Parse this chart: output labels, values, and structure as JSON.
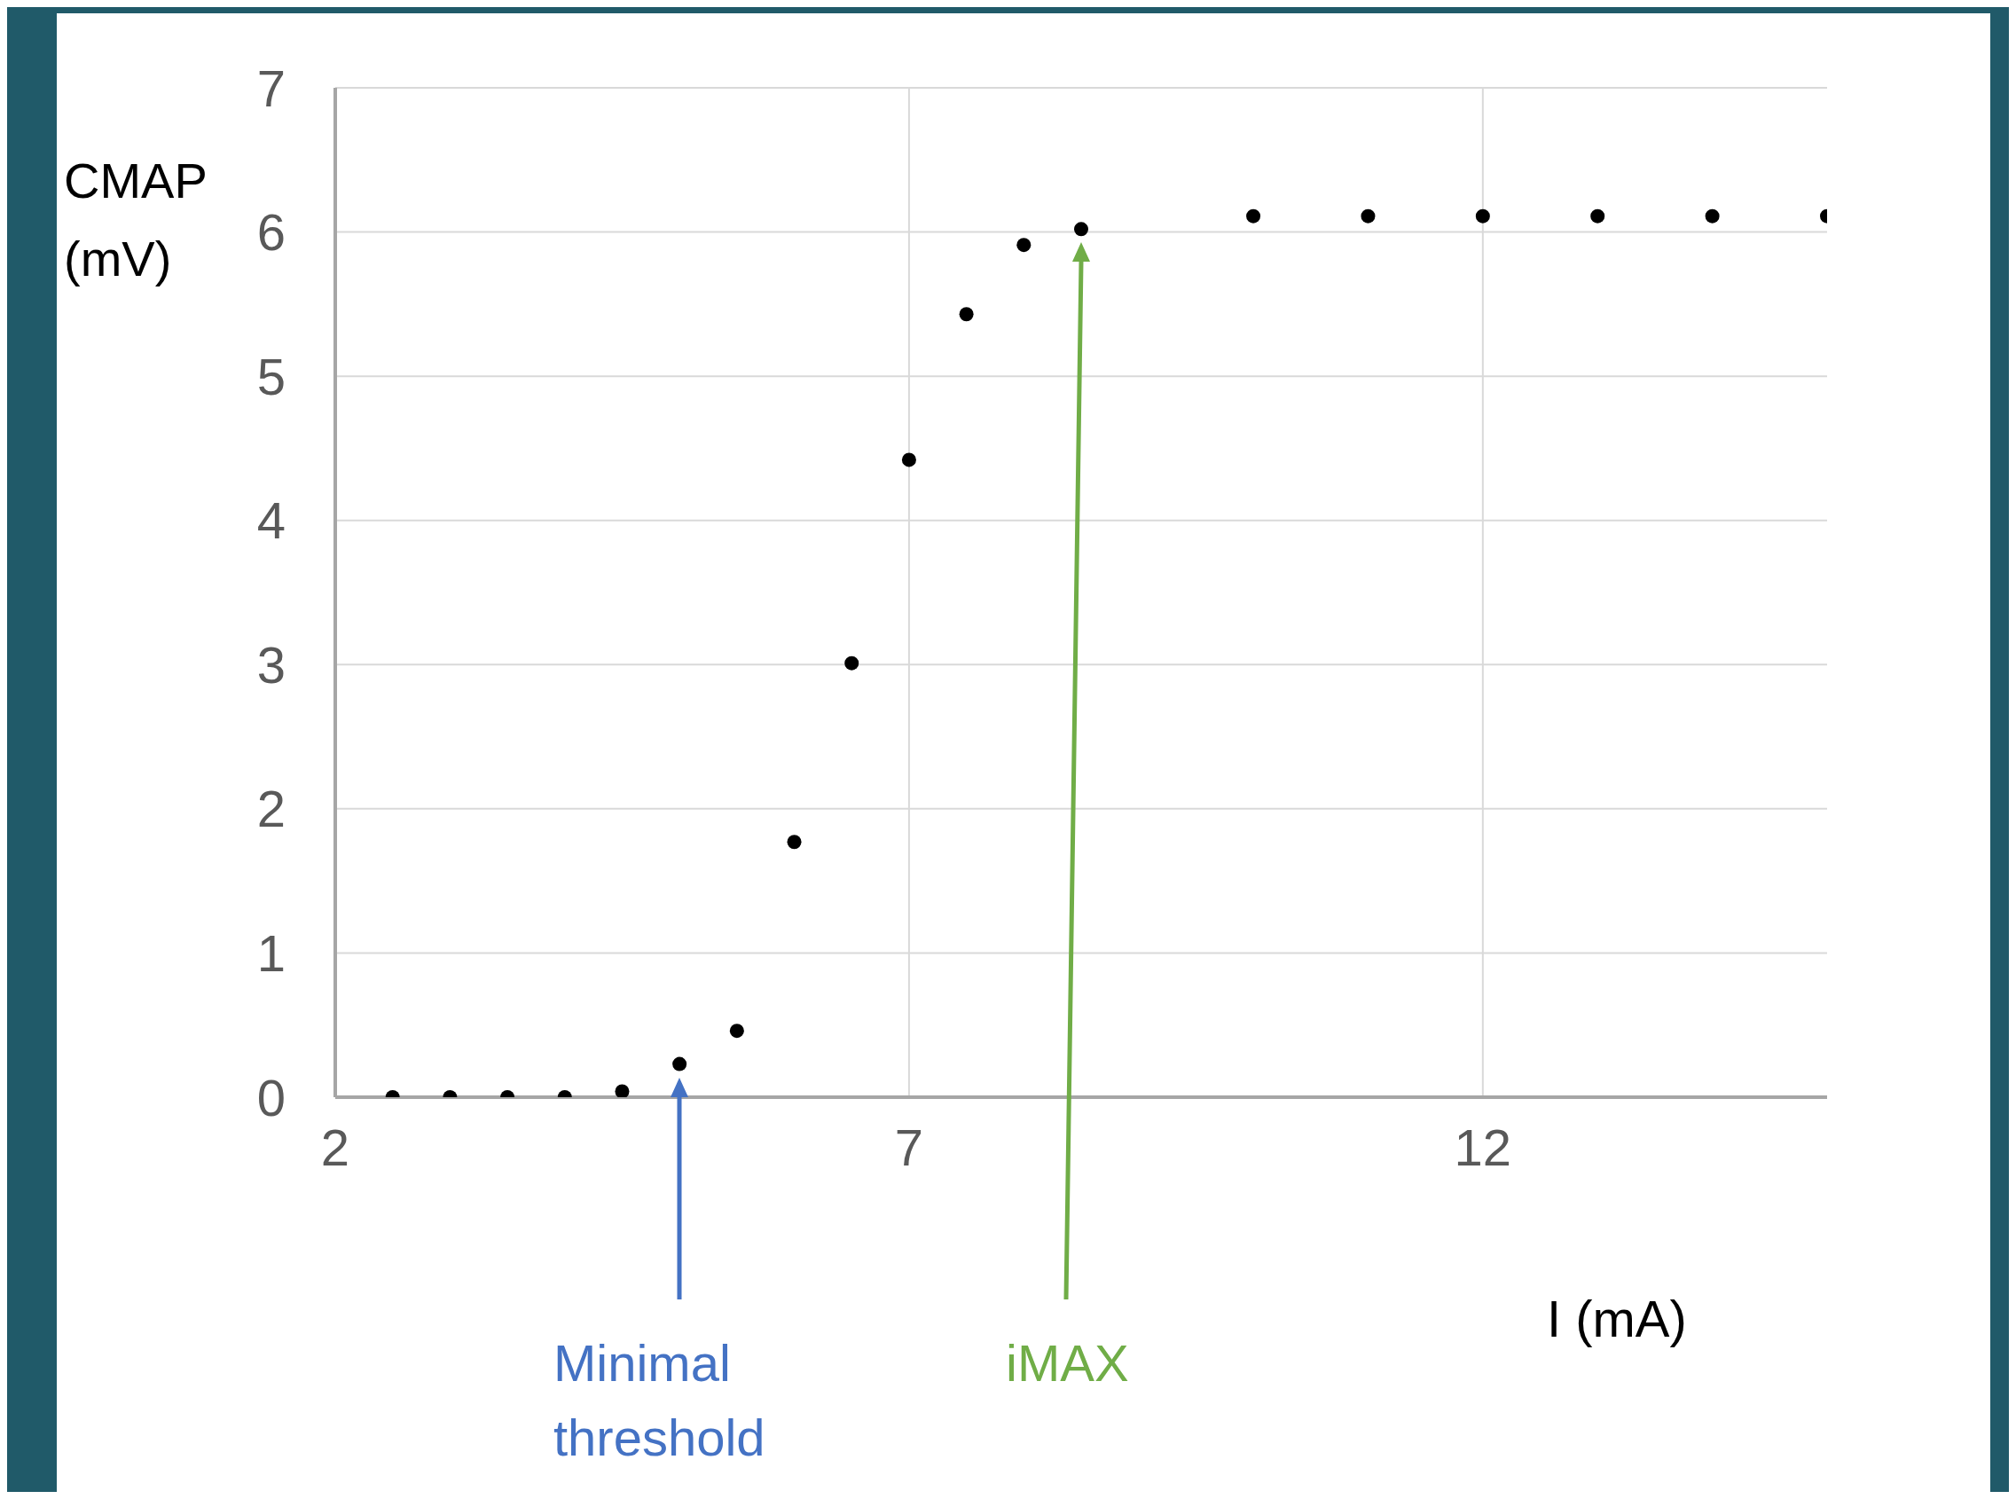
{
  "chart_data": {
    "type": "scatter",
    "xlabel": "I (mA)",
    "ylabel": "CMAP (mV)",
    "x": [
      2.5,
      3,
      3.5,
      4,
      4.5,
      5,
      5.5,
      6,
      6.5,
      7,
      7.5,
      8,
      8.5,
      10,
      11,
      12,
      13,
      14,
      15
    ],
    "series": [
      {
        "color": "#000000",
        "values": [
          0,
          0,
          0,
          0,
          0.04,
          0.23,
          0.46,
          1.77,
          3.01,
          4.42,
          5.43,
          5.91,
          6.02,
          6.11,
          6.11,
          6.11,
          6.11,
          6.11,
          6.11
        ]
      }
    ],
    "xlim": [
      2,
      15
    ],
    "xticks": [
      2,
      7,
      12
    ],
    "ylim": [
      0,
      7
    ],
    "yticks": [
      0,
      1,
      2,
      3,
      4,
      5,
      6,
      7
    ],
    "grid": true,
    "marker": "circle",
    "legend": false,
    "annotations": [
      "Minimal threshold",
      "iMAX"
    ]
  }
}
